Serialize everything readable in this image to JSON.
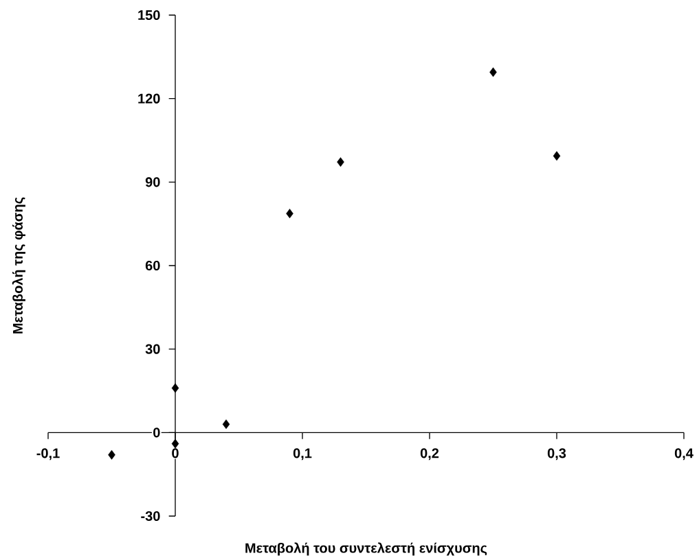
{
  "chart_data": {
    "type": "scatter",
    "xlabel": "Μεταβολή του συντελεστή ενίσχυσης",
    "ylabel": "Μεταβολή της φάσης",
    "x": [
      -0.05,
      0,
      0,
      0.04,
      0.09,
      0.13,
      0.25,
      0.3
    ],
    "values": [
      -8,
      16,
      -4,
      3,
      78.7,
      97.2,
      129.5,
      99.4
    ],
    "color": "#000000",
    "marker": "diamond",
    "xlim": [
      -0.1,
      0.4
    ],
    "ylim": [
      -30,
      150
    ],
    "xticks": [
      {
        "value": -0.1,
        "label": "-0,1"
      },
      {
        "value": 0,
        "label": "0"
      },
      {
        "value": 0.1,
        "label": "0,1"
      },
      {
        "value": 0.2,
        "label": "0,2"
      },
      {
        "value": 0.3,
        "label": "0,3"
      },
      {
        "value": 0.4,
        "label": "0,4"
      }
    ],
    "yticks": [
      -30,
      0,
      30,
      60,
      90,
      120,
      150
    ],
    "grid": false
  }
}
